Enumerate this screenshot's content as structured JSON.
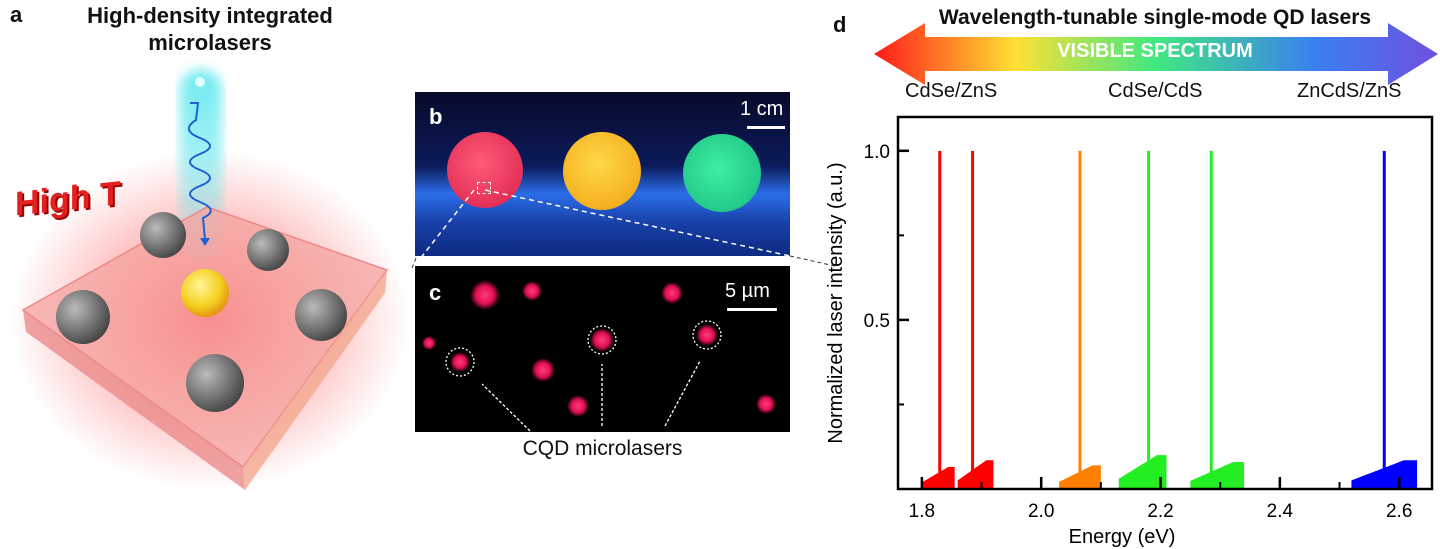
{
  "panel_a": {
    "label": "a",
    "title_line1": "High-density integrated",
    "title_line2": "microlasers",
    "high_t_label": "High T"
  },
  "panel_b": {
    "label": "b",
    "scale_bar": "1 cm",
    "sphere_colors": [
      "#e8304f",
      "#f5b81c",
      "#2fd98a"
    ]
  },
  "panel_c": {
    "label": "c",
    "scale_bar": "5 µm",
    "caption": "CQD microlasers"
  },
  "panel_d": {
    "label": "d",
    "title": "Wavelength-tunable single-mode QD lasers",
    "arrow_text": "VISIBLE SPECTRUM",
    "materials": [
      "CdSe/ZnS",
      "CdSe/CdS",
      "ZnCdS/ZnS"
    ]
  },
  "chart_data": {
    "type": "line",
    "title": "Wavelength-tunable single-mode QD lasers",
    "xlabel": "Energy (eV)",
    "ylabel": "Normalized laser intensity (a.u.)",
    "xlim": [
      1.76,
      2.655
    ],
    "ylim": [
      0,
      1.1
    ],
    "xticks": [
      "1.8",
      "2.0",
      "2.2",
      "2.4",
      "2.6"
    ],
    "yticks": [
      "0.5",
      "1.0"
    ],
    "grid": false,
    "series": [
      {
        "color": "#ff0000",
        "peak_x": 1.83,
        "peak_y": 1.0,
        "background_range": [
          1.8,
          1.855
        ],
        "background_max": 0.065
      },
      {
        "color": "#ff0000",
        "peak_x": 1.885,
        "peak_y": 1.0,
        "background_range": [
          1.86,
          1.92
        ],
        "background_max": 0.085
      },
      {
        "color": "#ff8000",
        "peak_x": 2.065,
        "peak_y": 1.0,
        "background_range": [
          2.03,
          2.1
        ],
        "background_max": 0.07
      },
      {
        "color": "#22ee22",
        "peak_x": 2.18,
        "peak_y": 1.0,
        "background_range": [
          2.13,
          2.21
        ],
        "background_max": 0.1
      },
      {
        "color": "#22ee22",
        "peak_x": 2.285,
        "peak_y": 1.0,
        "background_range": [
          2.25,
          2.34
        ],
        "background_max": 0.08
      },
      {
        "color": "#0000ff",
        "peak_x": 2.575,
        "peak_y": 1.0,
        "background_range": [
          2.52,
          2.63
        ],
        "background_max": 0.085
      }
    ]
  }
}
